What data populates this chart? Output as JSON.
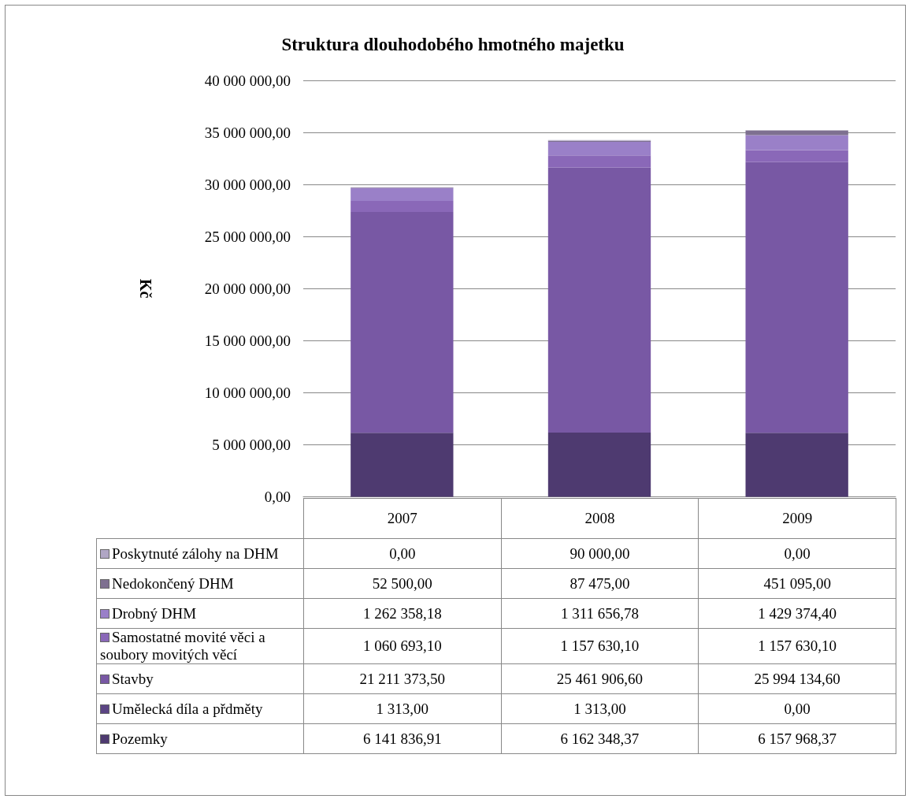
{
  "chart_data": {
    "type": "bar",
    "title": "Struktura dlouhodobého hmotného majetku",
    "ylabel": "Kč",
    "stacked": true,
    "categories": [
      "2007",
      "2008",
      "2009"
    ],
    "series": [
      {
        "name": "Pozemky",
        "color": "#4e3a70",
        "values": [
          6141836.91,
          6162348.37,
          6157968.37
        ],
        "value_labels": [
          "6 141 836,91",
          "6 162 348,37",
          "6 157 968,37"
        ]
      },
      {
        "name": "Umělecká díla a přdměty",
        "color": "#5b4584",
        "values": [
          1313,
          1313,
          0
        ],
        "value_labels": [
          "1 313,00",
          "1 313,00",
          "0,00"
        ]
      },
      {
        "name": "Stavby",
        "color": "#7858a4",
        "values": [
          21211373.5,
          25461906.6,
          25994134.6
        ],
        "value_labels": [
          "21 211 373,50",
          "25 461 906,60",
          "25 994 134,60"
        ]
      },
      {
        "name": "Samostatné movité věci a soubory movitých věcí",
        "color": "#8a68b8",
        "values": [
          1060693.1,
          1157630.1,
          1157630.1
        ],
        "value_labels": [
          "1 060 693,10",
          "1 157 630,10",
          "1 157 630,10"
        ]
      },
      {
        "name": "Drobný DHM",
        "color": "#9a80c8",
        "values": [
          1262358.18,
          1311656.78,
          1429374.4
        ],
        "value_labels": [
          "1 262 358,18",
          "1 311 656,78",
          "1 429 374,40"
        ]
      },
      {
        "name": "Nedokončený DHM",
        "color": "#7e7090",
        "values": [
          52500,
          87475,
          451095
        ],
        "value_labels": [
          "52 500,00",
          "87 475,00",
          "451 095,00"
        ]
      },
      {
        "name": "Poskytnuté zálohy na DHM",
        "color": "#b0a6c4",
        "values": [
          0,
          90000,
          0
        ],
        "value_labels": [
          "0,00",
          "90 000,00",
          "0,00"
        ]
      }
    ],
    "ylim": [
      0,
      40000000
    ],
    "yticks": [
      {
        "value": 0,
        "label": "0,00"
      },
      {
        "value": 5000000,
        "label": "5 000 000,00"
      },
      {
        "value": 10000000,
        "label": "10 000 000,00"
      },
      {
        "value": 15000000,
        "label": "15 000 000,00"
      },
      {
        "value": 20000000,
        "label": "20 000 000,00"
      },
      {
        "value": 25000000,
        "label": "25 000 000,00"
      },
      {
        "value": 30000000,
        "label": "30 000 000,00"
      },
      {
        "value": 35000000,
        "label": "35 000 000,00"
      },
      {
        "value": 40000000,
        "label": "40 000 000,00"
      }
    ],
    "grid": "y",
    "legend": "bottom left"
  }
}
